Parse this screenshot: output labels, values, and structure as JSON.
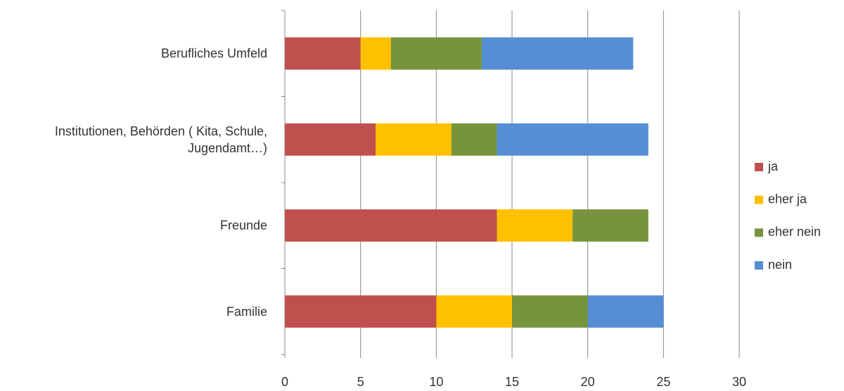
{
  "chart_data": {
    "type": "stacked-bar-horizontal",
    "categories": [
      "Berufliches Umfeld",
      "Institutionen, Behörden ( Kita, Schule, Jugendamt…)",
      "Freunde",
      "Familie"
    ],
    "series": [
      {
        "name": "ja",
        "color": "#c0504d",
        "values": [
          5,
          6,
          14,
          10
        ]
      },
      {
        "name": "eher ja",
        "color": "#ffc000",
        "values": [
          2,
          5,
          5,
          5
        ]
      },
      {
        "name": "eher nein",
        "color": "#77933c",
        "values": [
          6,
          3,
          5,
          5
        ]
      },
      {
        "name": "nein",
        "color": "#558ed5",
        "values": [
          10,
          10,
          0,
          5
        ]
      }
    ],
    "xlim": [
      0,
      30
    ],
    "xticks": [
      0,
      5,
      10,
      15,
      20,
      25,
      30
    ],
    "grid": true,
    "legend": "right"
  }
}
